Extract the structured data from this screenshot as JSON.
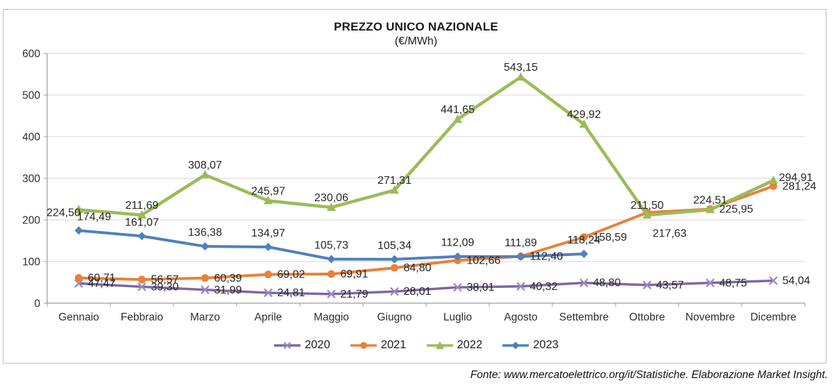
{
  "chart_data": {
    "type": "line",
    "title": "PREZZO UNICO NAZIONALE",
    "subtitle": "(€/MWh)",
    "categories": [
      "Gennaio",
      "Febbraio",
      "Marzo",
      "Aprile",
      "Maggio",
      "Giugno",
      "Luglio",
      "Agosto",
      "Settembre",
      "Ottobre",
      "Novembre",
      "Dicembre"
    ],
    "ylim": [
      0,
      600
    ],
    "yticks": [
      0,
      100,
      200,
      300,
      400,
      500,
      600
    ],
    "grid": "horizontal",
    "legend_position": "bottom",
    "decimal_separator": ",",
    "series": [
      {
        "name": "2020",
        "color": "#7E68A2",
        "marker": "x",
        "values": [
          47.47,
          39.3,
          31.99,
          24.81,
          21.79,
          28.01,
          38.01,
          40.32,
          48.8,
          43.57,
          48.75,
          54.04
        ],
        "labels": [
          "47,47",
          "39,30",
          "31,99",
          "24,81",
          "21,79",
          "28,01",
          "38,01",
          "40,32",
          "48,80",
          "43,57",
          "48,75",
          "54,04"
        ]
      },
      {
        "name": "2021",
        "color": "#E8813C",
        "marker": "circle",
        "values": [
          60.71,
          56.57,
          60.39,
          69.02,
          69.91,
          84.8,
          102.66,
          112.4,
          158.59,
          217.63,
          225.95,
          281.24
        ],
        "labels": [
          "60,71",
          "56,57",
          "60,39",
          "69,02",
          "69,91",
          "84,80",
          "102,66",
          "112,40",
          "158,59",
          "217,63",
          "225,95",
          "281,24"
        ]
      },
      {
        "name": "2022",
        "color": "#9BBB59",
        "marker": "triangle",
        "values": [
          224.5,
          211.69,
          308.07,
          245.97,
          230.06,
          271.31,
          441.65,
          543.15,
          429.92,
          211.5,
          224.51,
          294.91
        ],
        "labels": [
          "224,50",
          "211,69",
          "308,07",
          "245,97",
          "230,06",
          "271,31",
          "441,65",
          "543,15",
          "429,92",
          "211,50",
          "224,51",
          "294,91"
        ]
      },
      {
        "name": "2023",
        "color": "#4F81BD",
        "marker": "diamond",
        "values": [
          174.49,
          161.07,
          136.38,
          134.97,
          105.73,
          105.34,
          112.09,
          111.89,
          118.24
        ],
        "labels": [
          "174,49",
          "161,07",
          "136,38",
          "134,97",
          "105,73",
          "105,34",
          "112,09",
          "111,89",
          "118,24"
        ]
      }
    ],
    "footer": "Fonte: www.mercatoelettrico.org/it/Statistiche. Elaborazione Market Insight."
  }
}
